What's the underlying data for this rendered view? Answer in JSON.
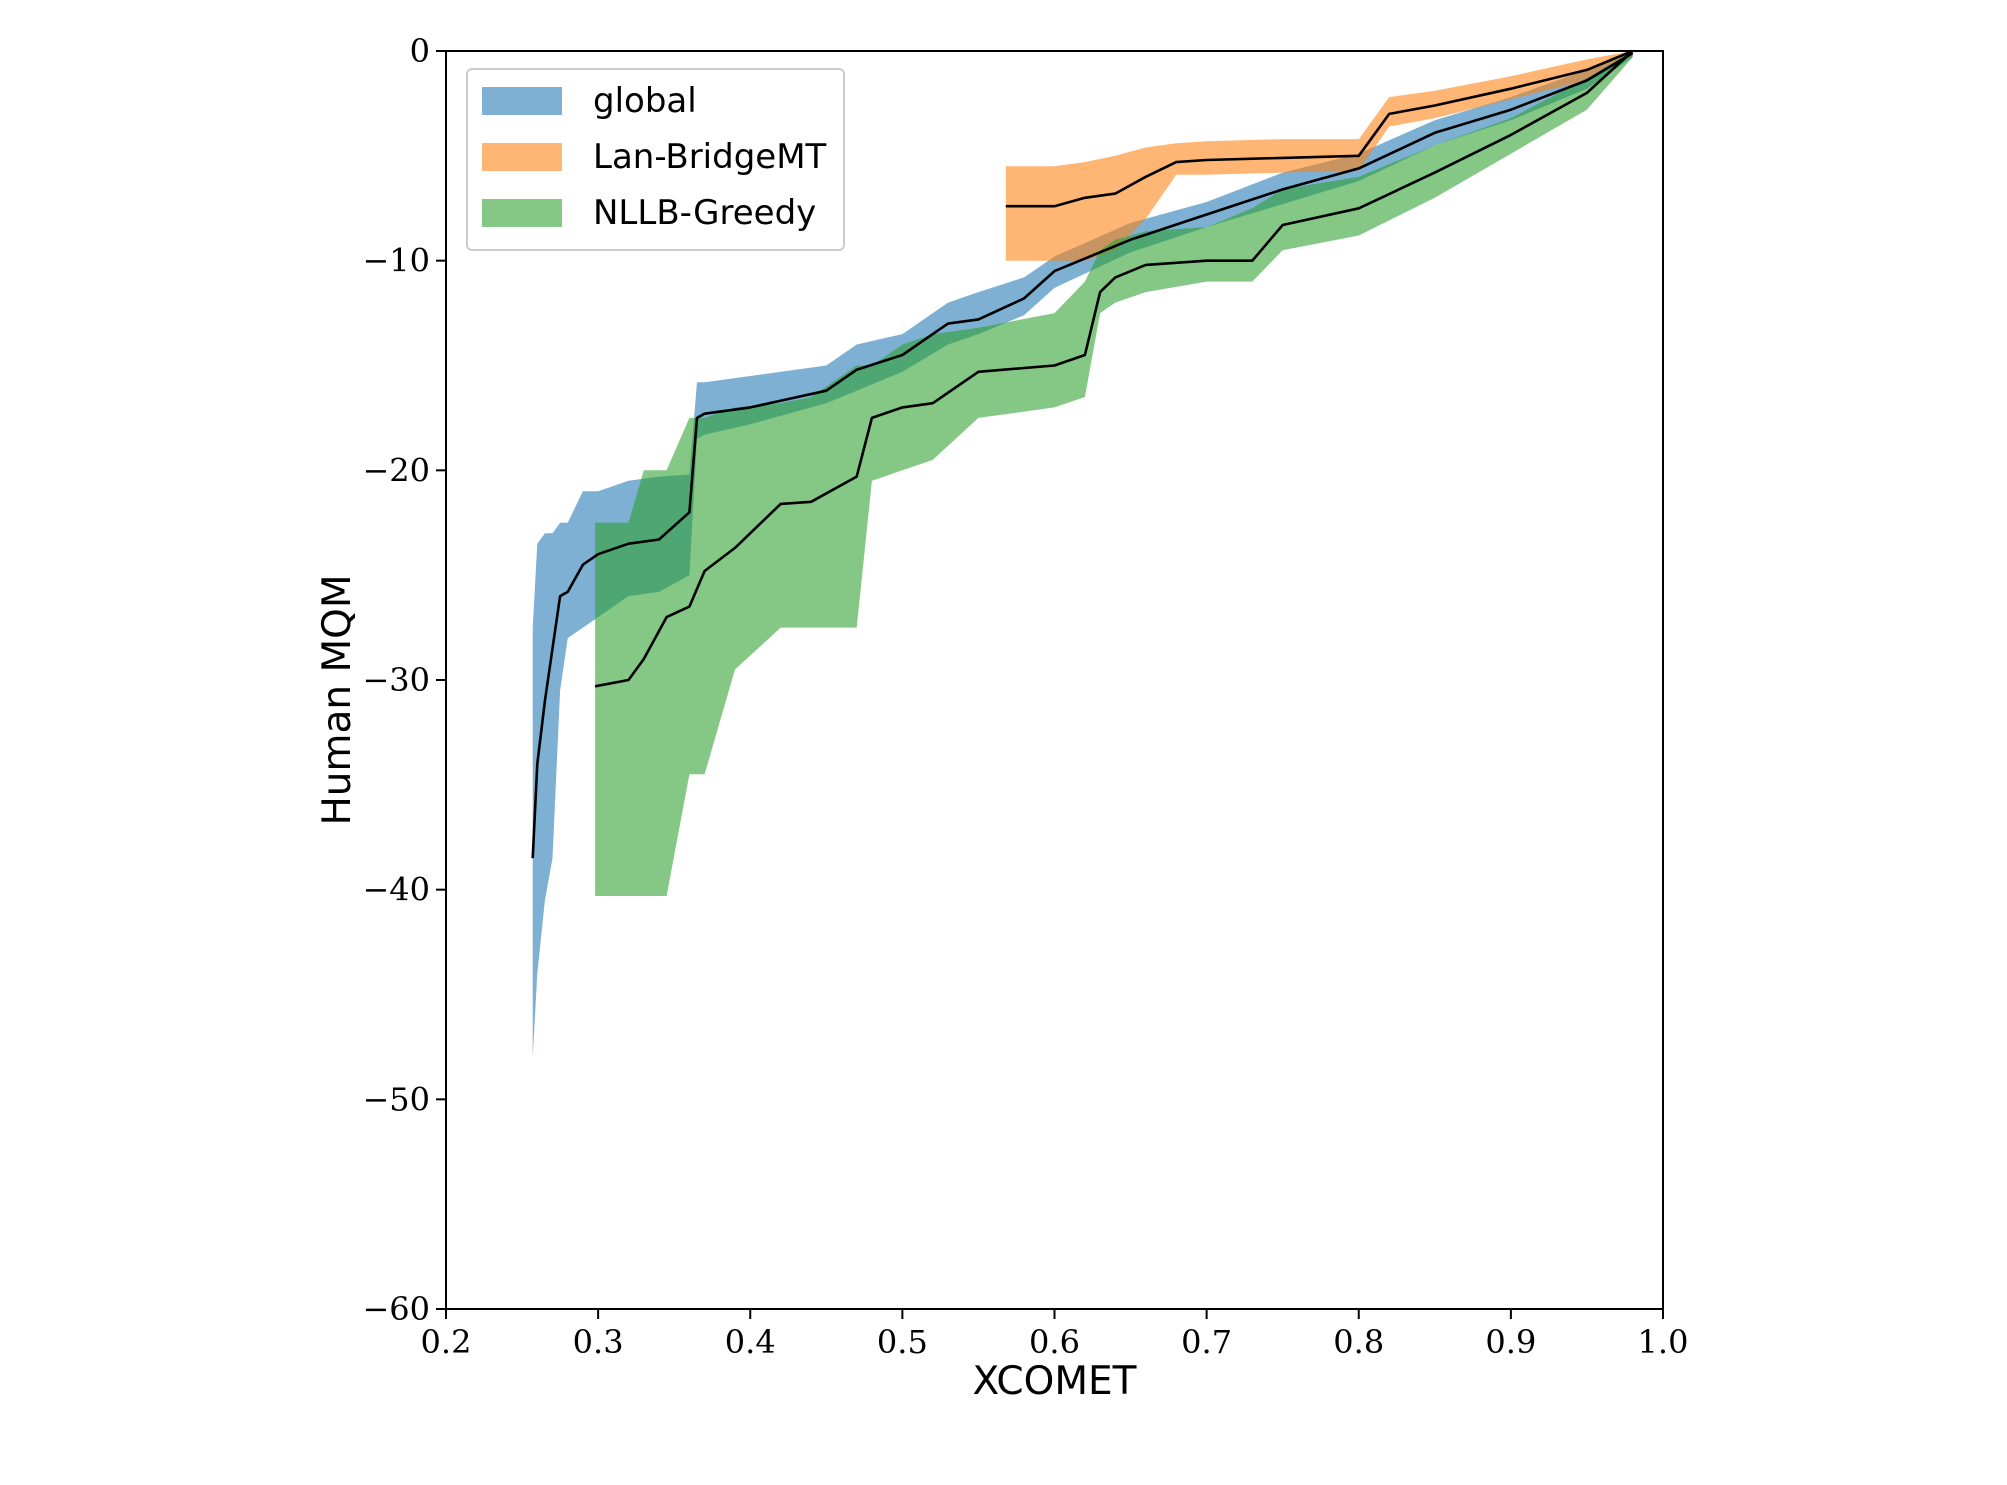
{
  "chart_data": {
    "type": "area",
    "title": "",
    "xlabel": "XCOMET",
    "ylabel": "Human MQM",
    "xlim": [
      0.2,
      1.0
    ],
    "ylim": [
      -60,
      0
    ],
    "grid": false,
    "legend_position": "top-left",
    "x_ticks": [
      {
        "value": 0.2,
        "label": "0.2"
      },
      {
        "value": 0.3,
        "label": "0.3"
      },
      {
        "value": 0.4,
        "label": "0.4"
      },
      {
        "value": 0.5,
        "label": "0.5"
      },
      {
        "value": 0.6,
        "label": "0.6"
      },
      {
        "value": 0.7,
        "label": "0.7"
      },
      {
        "value": 0.8,
        "label": "0.8"
      },
      {
        "value": 0.9,
        "label": "0.9"
      },
      {
        "value": 1.0,
        "label": "1.0"
      }
    ],
    "y_ticks": [
      {
        "value": 0,
        "label": "0"
      },
      {
        "value": -10,
        "label": "−10"
      },
      {
        "value": -20,
        "label": "−20"
      },
      {
        "value": -30,
        "label": "−30"
      },
      {
        "value": -40,
        "label": "−40"
      },
      {
        "value": -50,
        "label": "−50"
      },
      {
        "value": -60,
        "label": "−60"
      }
    ],
    "series": [
      {
        "name": "global",
        "color": "#1f77b4",
        "x": [
          0.257,
          0.26,
          0.265,
          0.27,
          0.275,
          0.28,
          0.29,
          0.3,
          0.32,
          0.34,
          0.36,
          0.365,
          0.37,
          0.4,
          0.45,
          0.47,
          0.5,
          0.53,
          0.55,
          0.58,
          0.6,
          0.65,
          0.7,
          0.75,
          0.8,
          0.85,
          0.9,
          0.95,
          0.98
        ],
        "y": [
          -38.5,
          -34.0,
          -31.0,
          -28.5,
          -26.0,
          -25.8,
          -24.5,
          -24.0,
          -23.5,
          -23.3,
          -22.0,
          -17.5,
          -17.3,
          -17.0,
          -16.2,
          -15.2,
          -14.5,
          -13.0,
          -12.8,
          -11.8,
          -10.5,
          -9.0,
          -7.8,
          -6.6,
          -5.6,
          -3.9,
          -2.8,
          -1.4,
          -0.1
        ],
        "lower": [
          -48.0,
          -44.0,
          -40.5,
          -38.5,
          -30.5,
          -28.0,
          -27.5,
          -27.0,
          -26.0,
          -25.8,
          -25.0,
          -18.5,
          -18.3,
          -17.8,
          -16.8,
          -16.2,
          -15.3,
          -14.0,
          -13.5,
          -12.6,
          -11.3,
          -9.6,
          -8.4,
          -7.3,
          -6.2,
          -4.5,
          -3.3,
          -1.8,
          -0.3
        ],
        "upper": [
          -27.5,
          -23.5,
          -23.0,
          -23.0,
          -22.5,
          -22.5,
          -21.0,
          -21.0,
          -20.5,
          -20.3,
          -20.2,
          -15.8,
          -15.8,
          -15.5,
          -15.0,
          -14.0,
          -13.5,
          -12.0,
          -11.5,
          -10.8,
          -9.8,
          -8.2,
          -7.2,
          -5.8,
          -4.9,
          -3.3,
          -2.2,
          -0.9,
          0.0
        ]
      },
      {
        "name": "Lan-BridgeMT",
        "color": "#ff7f0e",
        "x": [
          0.568,
          0.6,
          0.62,
          0.64,
          0.66,
          0.68,
          0.7,
          0.75,
          0.8,
          0.82,
          0.85,
          0.9,
          0.95,
          0.98
        ],
        "y": [
          -7.4,
          -7.4,
          -7.0,
          -6.8,
          -6.0,
          -5.3,
          -5.2,
          -5.1,
          -5.0,
          -3.0,
          -2.6,
          -1.8,
          -0.9,
          0.0
        ],
        "lower": [
          -10.0,
          -10.0,
          -10.0,
          -9.5,
          -8.0,
          -5.9,
          -5.9,
          -5.8,
          -5.7,
          -3.6,
          -3.2,
          -2.3,
          -1.4,
          -0.2
        ],
        "upper": [
          -5.5,
          -5.5,
          -5.3,
          -5.0,
          -4.6,
          -4.4,
          -4.3,
          -4.2,
          -4.2,
          -2.2,
          -1.9,
          -1.2,
          -0.4,
          0.0
        ]
      },
      {
        "name": "NLLB-Greedy",
        "color": "#2ca02c",
        "x": [
          0.298,
          0.32,
          0.33,
          0.345,
          0.36,
          0.37,
          0.39,
          0.42,
          0.44,
          0.47,
          0.48,
          0.5,
          0.52,
          0.55,
          0.6,
          0.62,
          0.63,
          0.64,
          0.66,
          0.7,
          0.73,
          0.75,
          0.8,
          0.85,
          0.9,
          0.95,
          0.98
        ],
        "y": [
          -30.3,
          -30.0,
          -29.0,
          -27.0,
          -26.5,
          -24.8,
          -23.7,
          -21.6,
          -21.5,
          -20.3,
          -17.5,
          -17.0,
          -16.8,
          -15.3,
          -15.0,
          -14.5,
          -11.5,
          -10.8,
          -10.2,
          -10.0,
          -10.0,
          -8.3,
          -7.5,
          -5.8,
          -4.0,
          -2.0,
          0.0
        ],
        "lower": [
          -40.3,
          -40.3,
          -40.3,
          -40.3,
          -34.5,
          -34.5,
          -29.5,
          -27.5,
          -27.5,
          -27.5,
          -20.5,
          -20.0,
          -19.5,
          -17.5,
          -17.0,
          -16.5,
          -12.5,
          -12.0,
          -11.5,
          -11.0,
          -11.0,
          -9.5,
          -8.8,
          -7.0,
          -4.9,
          -2.8,
          -0.3
        ],
        "upper": [
          -22.5,
          -22.5,
          -20.0,
          -20.0,
          -17.5,
          -17.5,
          -17.0,
          -16.8,
          -16.5,
          -15.0,
          -15.0,
          -14.0,
          -13.5,
          -13.2,
          -12.5,
          -11.0,
          -9.5,
          -9.0,
          -8.6,
          -8.4,
          -7.5,
          -6.6,
          -6.0,
          -4.5,
          -3.2,
          -1.3,
          0.0
        ]
      }
    ]
  }
}
